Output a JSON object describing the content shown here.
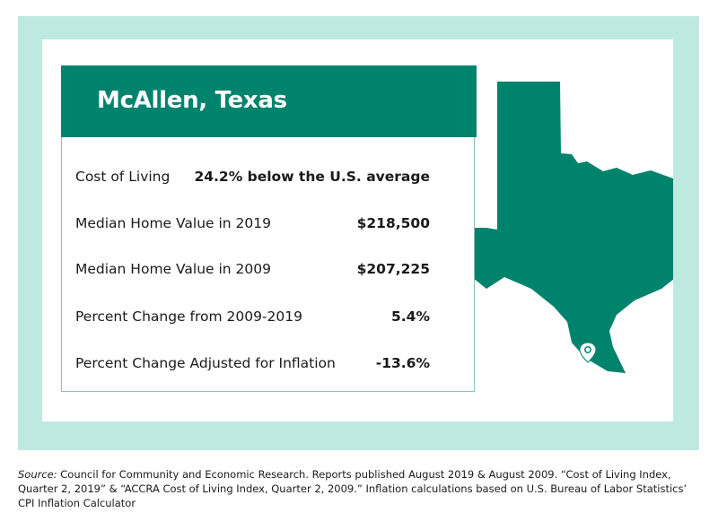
{
  "card": {
    "title": "McAllen, Texas",
    "rows": [
      {
        "label": "Cost of Living",
        "value": "24.2% below the U.S. average"
      },
      {
        "label": "Median Home Value in 2019",
        "value": "$218,500"
      },
      {
        "label": "Median Home Value in 2009",
        "value": "$207,225"
      },
      {
        "label": "Percent Change from 2009-2019",
        "value": "5.4%"
      },
      {
        "label": "Percent Change Adjusted for Inflation",
        "value": "-13.6%"
      }
    ]
  },
  "map": {
    "region": "Texas",
    "marker": "map-pin-icon",
    "fill_color": "#00836d"
  },
  "colors": {
    "brand": "#00836d",
    "frame": "#bde9e1"
  },
  "source": {
    "lead": "Source:",
    "text": " Council for Community and Economic Research. Reports published August 2019 & August 2009. “Cost of Living Index, Quarter 2, 2019” & “ACCRA Cost of Living Index, Quarter 2, 2009.” Inflation calculations based on U.S. Bureau of Labor Statistics’ CPI Inflation Calculator"
  }
}
